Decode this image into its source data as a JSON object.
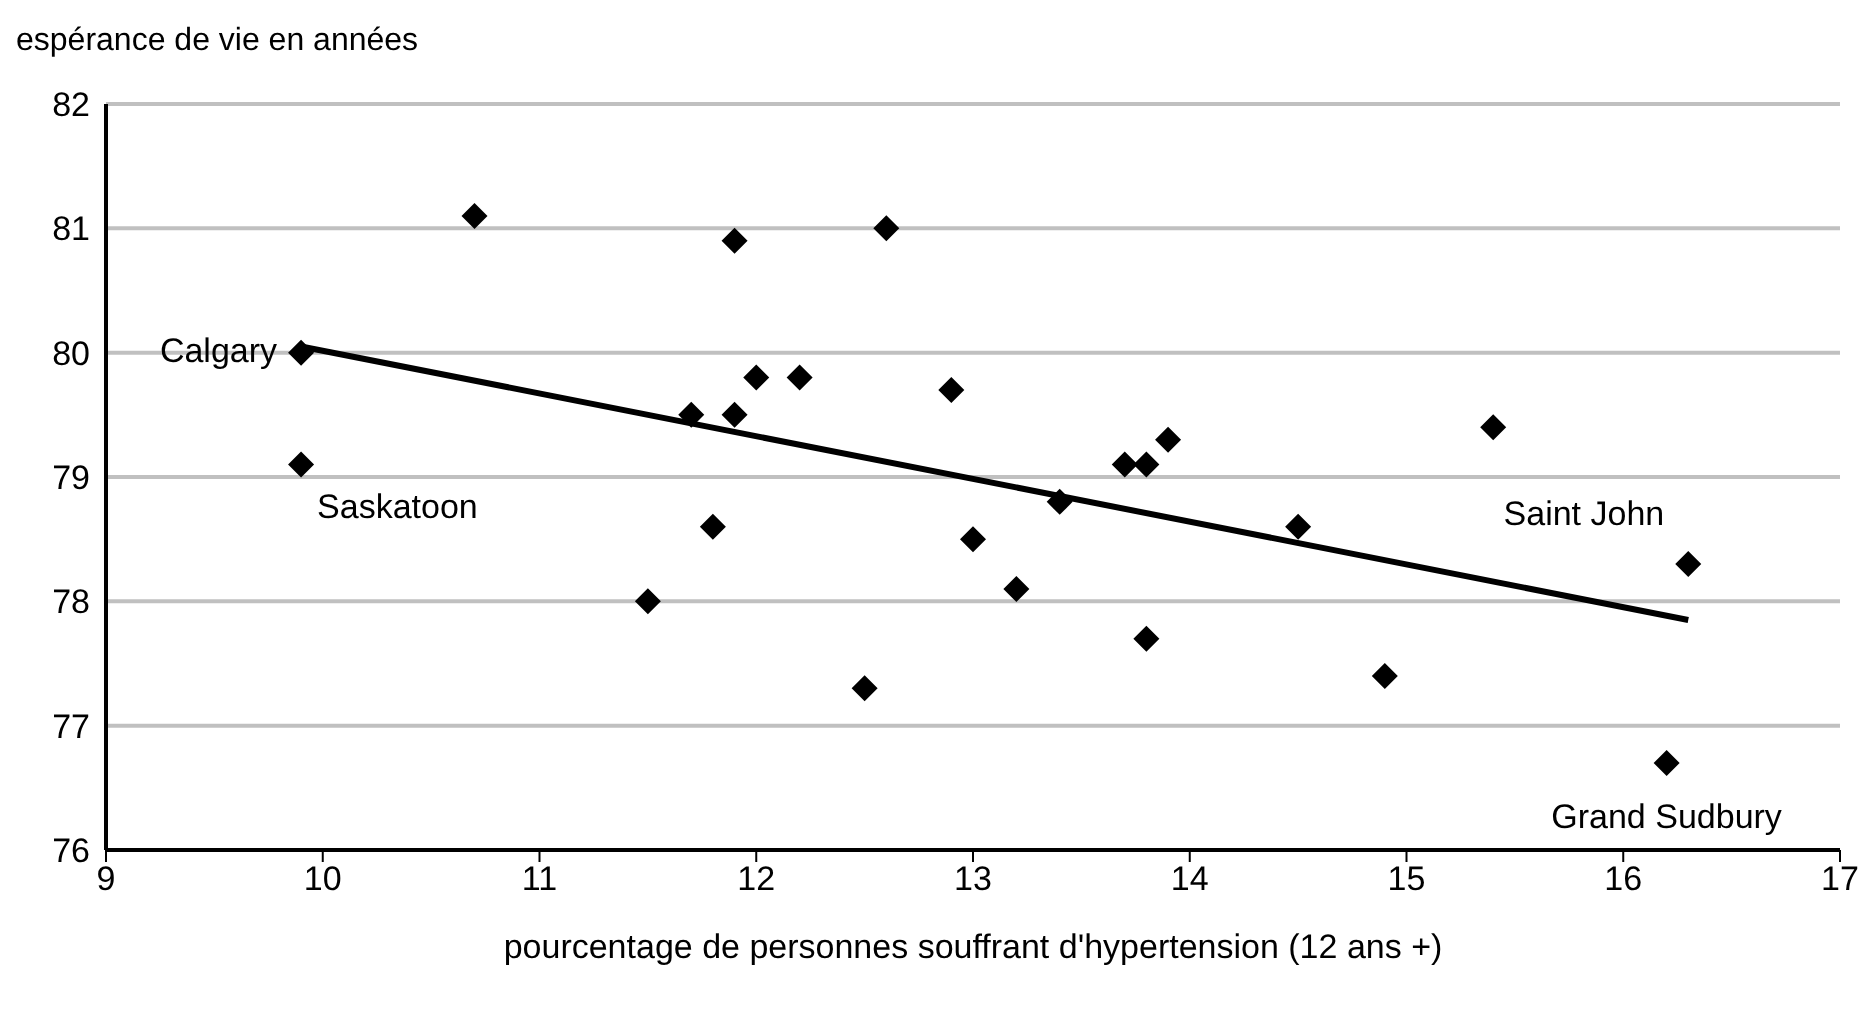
{
  "chart_data": {
    "type": "scatter",
    "ylabel": "espérance de vie en années",
    "xlabel": "pourcentage de personnes souffrant d'hypertension (12 ans +)",
    "xlim": [
      9,
      17
    ],
    "xticks": [
      9,
      10,
      11,
      12,
      13,
      14,
      15,
      16,
      17
    ],
    "ylim": [
      76,
      82
    ],
    "yticks": [
      76,
      77,
      78,
      79,
      80,
      81,
      82
    ],
    "grid": "y",
    "marker": "diamond",
    "series": [
      {
        "type": "scatter",
        "color": "#000000",
        "x": [
          9.9,
          9.9,
          10.7,
          11.9,
          12.6,
          12.0,
          12.2,
          12.9,
          11.7,
          11.9,
          11.8,
          11.5,
          12.5,
          13.0,
          13.2,
          13.4,
          13.7,
          13.8,
          13.9,
          13.8,
          14.5,
          14.9,
          15.4,
          16.3,
          16.2
        ],
        "values": [
          80.0,
          79.1,
          81.1,
          80.9,
          81.0,
          79.8,
          79.8,
          79.7,
          79.5,
          79.5,
          78.6,
          78.0,
          77.3,
          78.5,
          78.1,
          78.8,
          79.1,
          79.1,
          79.3,
          77.7,
          78.6,
          77.4,
          79.4,
          78.3,
          76.7
        ]
      },
      {
        "type": "line",
        "color": "#000000",
        "marker": "none",
        "x": [
          9.9,
          16.3
        ],
        "values": [
          80.05,
          77.85
        ]
      }
    ],
    "annotations": [
      {
        "text": "Calgary",
        "x": 9.9,
        "y": 80.0
      },
      {
        "text": "Saskatoon",
        "x": 9.9,
        "y": 79.1
      },
      {
        "text": "Saint John",
        "x": 16.3,
        "y": 78.3
      },
      {
        "text": "Grand Sudbury",
        "x": 16.2,
        "y": 76.7
      }
    ]
  }
}
